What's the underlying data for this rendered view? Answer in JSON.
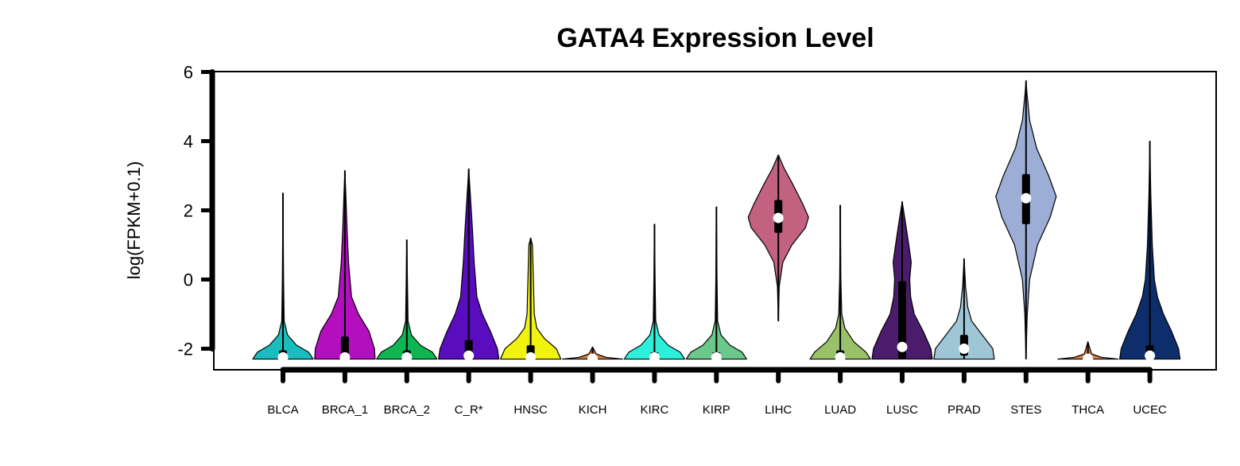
{
  "chart_data": {
    "type": "violin",
    "title": "GATA4 Expression Level",
    "xlabel": "",
    "ylabel": "log(FPKM+0.1)",
    "ylim": [
      -2.6,
      6.1
    ],
    "yticks": [
      -2,
      0,
      2,
      4,
      6
    ],
    "ytick_labels": [
      "-2",
      "0",
      "2",
      "4",
      "6"
    ],
    "grid": false,
    "legend": "none",
    "categories": [
      "BLCA",
      "BRCA_1",
      "BRCA_2",
      "C_R*",
      "HNSC",
      "KICH",
      "KIRC",
      "KIRP",
      "LIHC",
      "LUAD",
      "LUSC",
      "PRAD",
      "STES",
      "THCA",
      "UCEC"
    ],
    "series": [
      {
        "category": "BLCA",
        "color": "#19bdbd",
        "min": -2.3,
        "max": 2.5,
        "q1": -2.3,
        "median": -2.25,
        "q3": -2.05,
        "ymax": 2.5,
        "shape": [
          [
            -2.3,
            1.0
          ],
          [
            -2.1,
            0.85
          ],
          [
            -1.9,
            0.45
          ],
          [
            -1.6,
            0.15
          ],
          [
            -1.2,
            0.04
          ],
          [
            0,
            0.02
          ],
          [
            2.5,
            0.0
          ]
        ]
      },
      {
        "category": "BRCA_1",
        "color": "#b30fbf",
        "min": -2.3,
        "max": 3.15,
        "q1": -2.3,
        "median": -2.25,
        "q3": -1.65,
        "ymax": 3.15,
        "shape": [
          [
            -2.3,
            1.0
          ],
          [
            -2.0,
            0.98
          ],
          [
            -1.5,
            0.8
          ],
          [
            -1.0,
            0.45
          ],
          [
            -0.5,
            0.22
          ],
          [
            0.5,
            0.12
          ],
          [
            1.5,
            0.07
          ],
          [
            2.5,
            0.03
          ],
          [
            3.15,
            0.0
          ]
        ]
      },
      {
        "category": "BRCA_2",
        "color": "#0eb552",
        "min": -2.3,
        "max": 1.15,
        "q1": -2.3,
        "median": -2.25,
        "q3": -2.05,
        "ymax": 1.15,
        "shape": [
          [
            -2.3,
            1.0
          ],
          [
            -2.1,
            0.85
          ],
          [
            -1.9,
            0.45
          ],
          [
            -1.6,
            0.15
          ],
          [
            -1.2,
            0.04
          ],
          [
            0,
            0.02
          ],
          [
            1.15,
            0.0
          ]
        ]
      },
      {
        "category": "C_R*",
        "color": "#5a0dbf",
        "min": -2.3,
        "max": 3.2,
        "q1": -2.3,
        "median": -2.2,
        "q3": -1.75,
        "ymax": 3.2,
        "shape": [
          [
            -2.3,
            1.0
          ],
          [
            -2.0,
            0.95
          ],
          [
            -1.5,
            0.72
          ],
          [
            -1.0,
            0.45
          ],
          [
            -0.5,
            0.27
          ],
          [
            0.5,
            0.18
          ],
          [
            1.5,
            0.12
          ],
          [
            2.5,
            0.05
          ],
          [
            3.2,
            0.0
          ]
        ]
      },
      {
        "category": "HNSC",
        "color": "#f2f20f",
        "min": -2.3,
        "max": 1.2,
        "q1": -2.3,
        "median": -2.25,
        "q3": -1.9,
        "ymax": 1.2,
        "shape": [
          [
            -2.3,
            1.0
          ],
          [
            -2.0,
            0.85
          ],
          [
            -1.7,
            0.45
          ],
          [
            -1.4,
            0.2
          ],
          [
            -1.0,
            0.12
          ],
          [
            0,
            0.09
          ],
          [
            1.0,
            0.06
          ],
          [
            1.2,
            0.0
          ]
        ]
      },
      {
        "category": "KICH",
        "color": "#d97a3a",
        "min": -2.3,
        "max": -1.95,
        "q1": -2.3,
        "median": -2.29,
        "q3": -2.28,
        "ymax": -1.95,
        "shape": [
          [
            -2.3,
            1.0
          ],
          [
            -2.25,
            0.45
          ],
          [
            -2.15,
            0.12
          ],
          [
            -1.95,
            0.0
          ]
        ]
      },
      {
        "category": "KIRC",
        "color": "#2ef0da",
        "min": -2.3,
        "max": 1.6,
        "q1": -2.3,
        "median": -2.25,
        "q3": -2.1,
        "ymax": 1.6,
        "shape": [
          [
            -2.3,
            1.0
          ],
          [
            -2.1,
            0.85
          ],
          [
            -1.9,
            0.45
          ],
          [
            -1.6,
            0.15
          ],
          [
            -1.2,
            0.04
          ],
          [
            0,
            0.02
          ],
          [
            1.6,
            0.0
          ]
        ]
      },
      {
        "category": "KIRP",
        "color": "#6cc78a",
        "min": -2.3,
        "max": 2.1,
        "q1": -2.3,
        "median": -2.25,
        "q3": -2.1,
        "ymax": 2.1,
        "shape": [
          [
            -2.3,
            1.0
          ],
          [
            -2.1,
            0.85
          ],
          [
            -1.9,
            0.45
          ],
          [
            -1.6,
            0.15
          ],
          [
            -1.2,
            0.04
          ],
          [
            0,
            0.02
          ],
          [
            2.1,
            0.0
          ]
        ]
      },
      {
        "category": "LIHC",
        "color": "#c26180",
        "min": -1.2,
        "max": 3.6,
        "q1": 1.35,
        "median": 1.78,
        "q3": 2.3,
        "ymax": 3.6,
        "shape": [
          [
            -1.2,
            0.0
          ],
          [
            -0.2,
            0.03
          ],
          [
            0.5,
            0.15
          ],
          [
            1.0,
            0.45
          ],
          [
            1.5,
            0.9
          ],
          [
            1.8,
            1.0
          ],
          [
            2.2,
            0.8
          ],
          [
            2.8,
            0.45
          ],
          [
            3.2,
            0.2
          ],
          [
            3.6,
            0.0
          ]
        ]
      },
      {
        "category": "LUAD",
        "color": "#98c16a",
        "min": -2.3,
        "max": 2.15,
        "q1": -2.3,
        "median": -2.25,
        "q3": -2.05,
        "ymax": 2.15,
        "shape": [
          [
            -2.3,
            1.0
          ],
          [
            -2.1,
            0.85
          ],
          [
            -1.8,
            0.45
          ],
          [
            -1.4,
            0.15
          ],
          [
            -1.0,
            0.05
          ],
          [
            0,
            0.02
          ],
          [
            2.15,
            0.0
          ]
        ]
      },
      {
        "category": "LUSC",
        "color": "#4a1c6b",
        "min": -2.3,
        "max": 2.25,
        "q1": -2.3,
        "median": -1.95,
        "q3": -0.05,
        "ymax": 2.25,
        "shape": [
          [
            -2.3,
            1.0
          ],
          [
            -2.0,
            0.95
          ],
          [
            -1.5,
            0.7
          ],
          [
            -1.0,
            0.4
          ],
          [
            -0.5,
            0.28
          ],
          [
            0,
            0.25
          ],
          [
            0.5,
            0.3
          ],
          [
            1.0,
            0.22
          ],
          [
            1.7,
            0.1
          ],
          [
            2.25,
            0.0
          ]
        ]
      },
      {
        "category": "PRAD",
        "color": "#9fc6d6",
        "min": -2.3,
        "max": 0.6,
        "q1": -2.2,
        "median": -2.0,
        "q3": -1.6,
        "ymax": 0.6,
        "shape": [
          [
            -2.3,
            1.0
          ],
          [
            -2.0,
            0.95
          ],
          [
            -1.6,
            0.6
          ],
          [
            -1.2,
            0.25
          ],
          [
            -0.8,
            0.12
          ],
          [
            -0.2,
            0.05
          ],
          [
            0.6,
            0.0
          ]
        ]
      },
      {
        "category": "STES",
        "color": "#9caed6",
        "min": -2.3,
        "max": 5.75,
        "q1": 1.6,
        "median": 2.35,
        "q3": 3.05,
        "ymax": 5.75,
        "shape": [
          [
            -2.3,
            0.0
          ],
          [
            -1.0,
            0.04
          ],
          [
            0,
            0.12
          ],
          [
            1.0,
            0.38
          ],
          [
            1.8,
            0.8
          ],
          [
            2.4,
            1.0
          ],
          [
            3.0,
            0.75
          ],
          [
            3.8,
            0.35
          ],
          [
            4.6,
            0.12
          ],
          [
            5.4,
            0.03
          ],
          [
            5.75,
            0.0
          ]
        ]
      },
      {
        "category": "THCA",
        "color": "#d9804a",
        "min": -2.3,
        "max": -1.8,
        "q1": -2.3,
        "median": -2.29,
        "q3": -2.28,
        "ymax": -1.8,
        "shape": [
          [
            -2.3,
            1.0
          ],
          [
            -2.25,
            0.45
          ],
          [
            -2.15,
            0.12
          ],
          [
            -1.8,
            0.0
          ]
        ]
      },
      {
        "category": "UCEC",
        "color": "#0d2e6b",
        "min": -2.3,
        "max": 4.0,
        "q1": -2.3,
        "median": -2.2,
        "q3": -1.9,
        "ymax": 4.0,
        "shape": [
          [
            -2.3,
            1.0
          ],
          [
            -2.0,
            0.95
          ],
          [
            -1.5,
            0.72
          ],
          [
            -1.0,
            0.45
          ],
          [
            -0.5,
            0.25
          ],
          [
            0,
            0.15
          ],
          [
            1.0,
            0.08
          ],
          [
            2.5,
            0.03
          ],
          [
            4.0,
            0.0
          ]
        ]
      }
    ]
  }
}
